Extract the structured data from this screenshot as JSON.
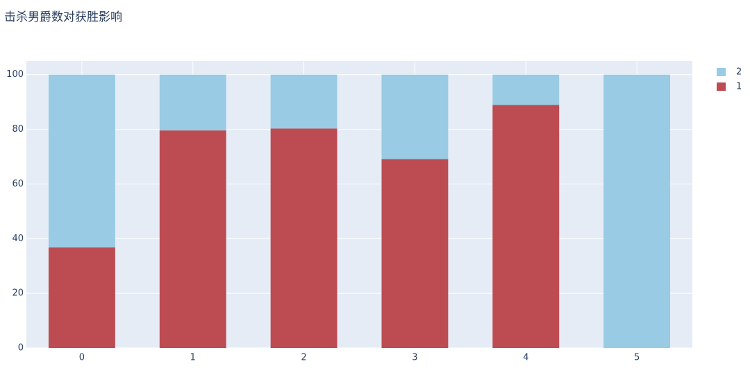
{
  "chart_data": {
    "type": "stacked_bar",
    "title": "击杀男爵数对获胜影响",
    "categories": [
      "0",
      "1",
      "2",
      "3",
      "4",
      "5"
    ],
    "series": [
      {
        "name": "1",
        "color": "#bd4c52",
        "values": [
          36.8,
          79.6,
          80.3,
          69.1,
          88.9,
          0
        ]
      },
      {
        "name": "2",
        "color": "#99cbe4",
        "values": [
          63.2,
          20.4,
          19.7,
          30.9,
          11.1,
          100
        ]
      }
    ],
    "ylim": [
      0,
      105
    ],
    "yticks": [
      0,
      20,
      40,
      60,
      80,
      100
    ],
    "grid": true
  }
}
